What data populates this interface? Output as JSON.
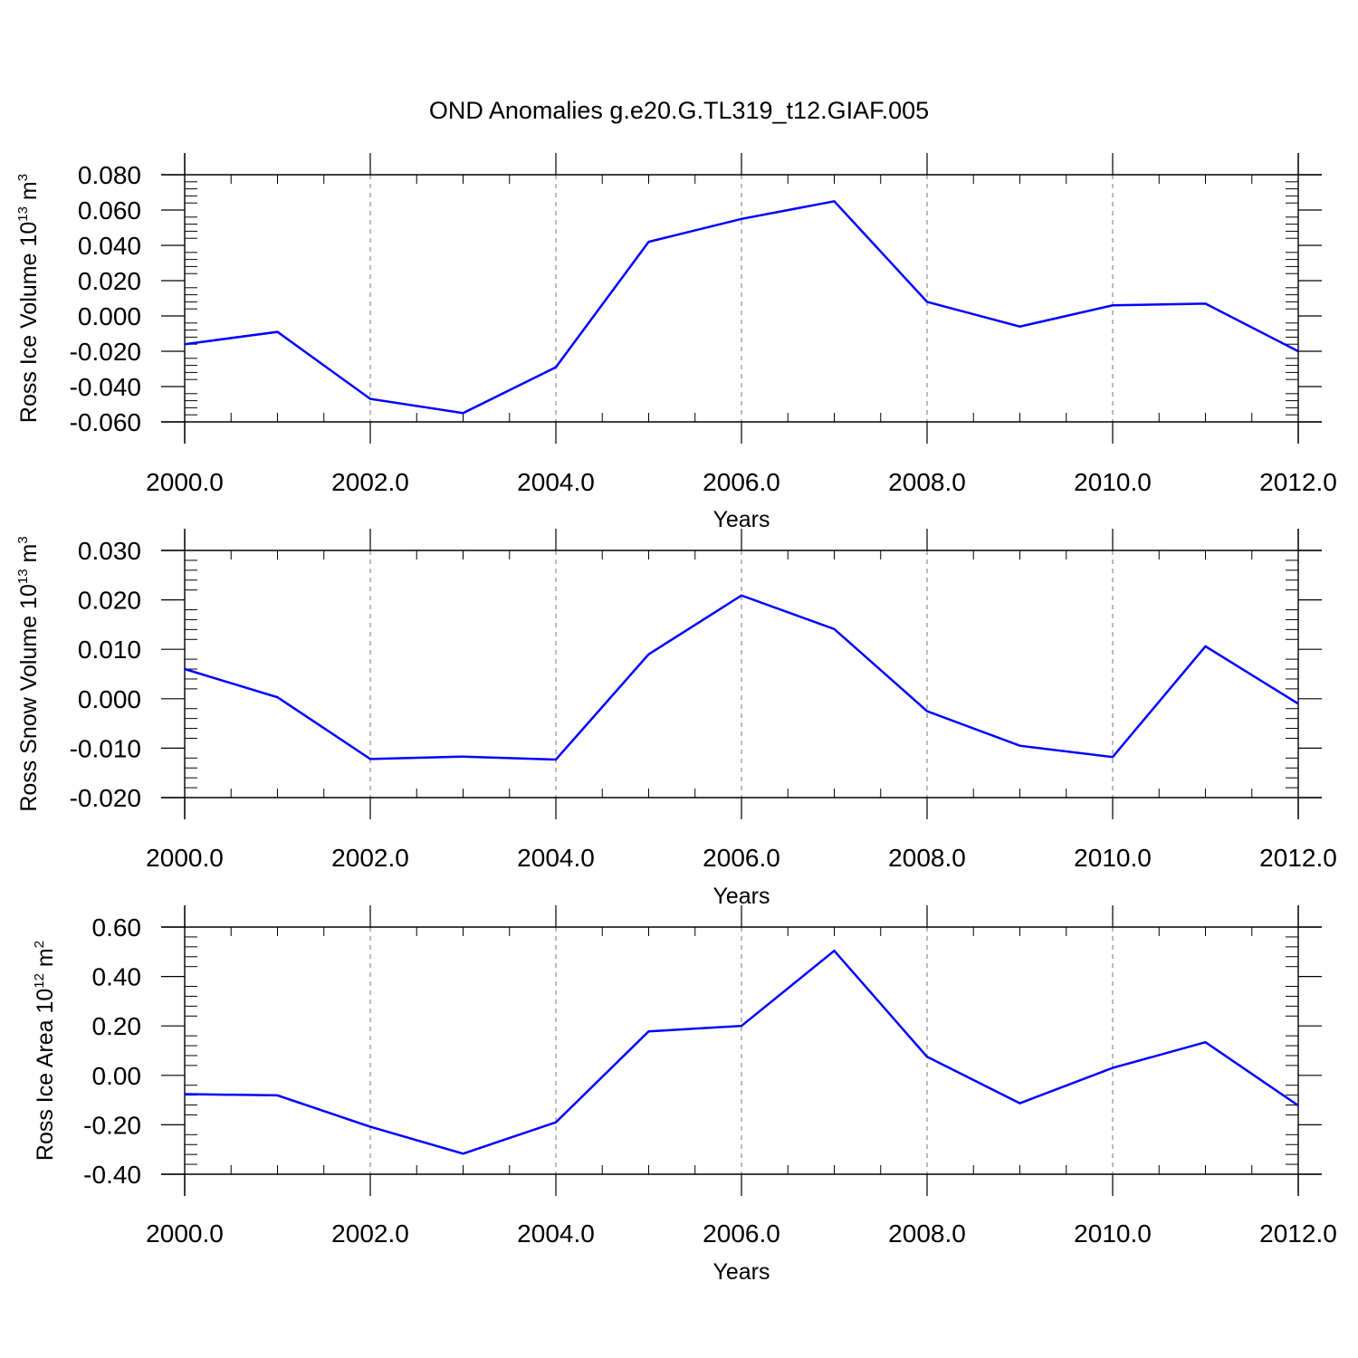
{
  "title": "OND Anomalies g.e20.G.TL319_t12.GIAF.005",
  "colors": {
    "line": "#0000ff",
    "axis": "#000000",
    "grid": "#777777"
  },
  "chart_data": [
    {
      "type": "line",
      "ylabel": {
        "text": "Ross Ice Volume 10",
        "sup1": "13",
        "unit": " m",
        "sup2": "3"
      },
      "xlabel": "Years",
      "xlim": [
        2000,
        2012
      ],
      "ylim": [
        -0.06,
        0.08
      ],
      "x_ticks": [
        "2000.0",
        "2002.0",
        "2004.0",
        "2006.0",
        "2008.0",
        "2010.0",
        "2012.0"
      ],
      "y_ticks": [
        "0.080",
        "0.060",
        "0.040",
        "0.020",
        "0.000",
        "-0.020",
        "-0.040",
        "-0.060"
      ],
      "y_tick_values": [
        0.08,
        0.06,
        0.04,
        0.02,
        0.0,
        -0.02,
        -0.04,
        -0.06
      ],
      "x": [
        2000,
        2001,
        2002,
        2003,
        2004,
        2005,
        2006,
        2007,
        2008,
        2009,
        2010,
        2011,
        2012
      ],
      "values": [
        -0.016,
        -0.009,
        -0.047,
        -0.055,
        -0.029,
        0.042,
        0.055,
        0.065,
        0.008,
        -0.006,
        0.006,
        0.007,
        -0.02
      ]
    },
    {
      "type": "line",
      "ylabel": {
        "text": "Ross Snow Volume 10",
        "sup1": "13",
        "unit": " m",
        "sup2": "3"
      },
      "xlabel": "Years",
      "xlim": [
        2000,
        2012
      ],
      "ylim": [
        -0.02,
        0.03
      ],
      "x_ticks": [
        "2000.0",
        "2002.0",
        "2004.0",
        "2006.0",
        "2008.0",
        "2010.0",
        "2012.0"
      ],
      "y_ticks": [
        "0.030",
        "0.020",
        "0.010",
        "0.000",
        "-0.010",
        "-0.020"
      ],
      "y_tick_values": [
        0.03,
        0.02,
        0.01,
        0.0,
        -0.01,
        -0.02
      ],
      "x": [
        2000,
        2001,
        2002,
        2003,
        2004,
        2005,
        2006,
        2007,
        2008,
        2009,
        2010,
        2011,
        2012
      ],
      "values": [
        0.006,
        0.0003,
        -0.0122,
        -0.0117,
        -0.0123,
        0.009,
        0.0209,
        0.0141,
        -0.0025,
        -0.0095,
        -0.0118,
        0.0106,
        -0.001
      ]
    },
    {
      "type": "line",
      "ylabel": {
        "text": "Ross Ice Area 10",
        "sup1": "12",
        "unit": " m",
        "sup2": "2"
      },
      "xlabel": "Years",
      "xlim": [
        2000,
        2012
      ],
      "ylim": [
        -0.4,
        0.6
      ],
      "x_ticks": [
        "2000.0",
        "2002.0",
        "2004.0",
        "2006.0",
        "2008.0",
        "2010.0",
        "2012.0"
      ],
      "y_ticks": [
        "0.60",
        "0.40",
        "0.20",
        "0.00",
        "-0.20",
        "-0.40"
      ],
      "y_tick_values": [
        0.6,
        0.4,
        0.2,
        0.0,
        -0.2,
        -0.4
      ],
      "x": [
        2000,
        2001,
        2002,
        2003,
        2004,
        2005,
        2006,
        2007,
        2008,
        2009,
        2010,
        2011,
        2012
      ],
      "values": [
        -0.076,
        -0.081,
        -0.208,
        -0.317,
        -0.19,
        0.178,
        0.2,
        0.504,
        0.075,
        -0.113,
        0.03,
        0.134,
        -0.122
      ]
    }
  ]
}
